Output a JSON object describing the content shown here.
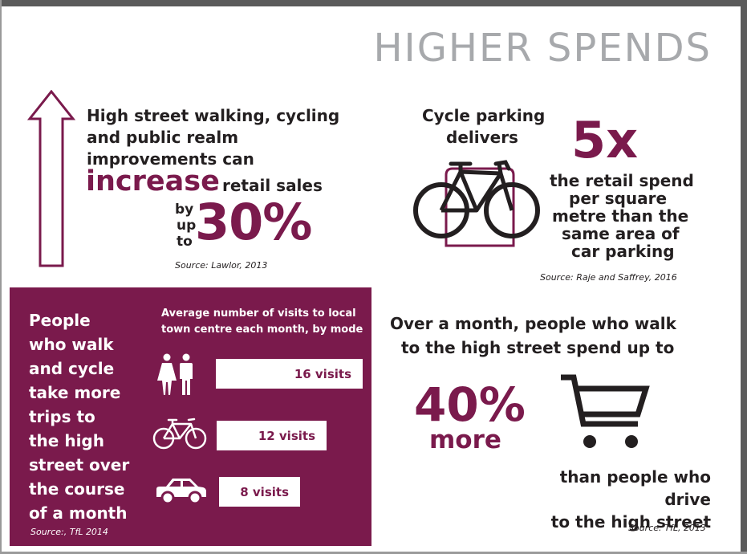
{
  "title": "HIGHER SPENDS",
  "section1": {
    "lines": [
      "High street walking, cycling",
      "and public realm",
      "improvements can"
    ],
    "highlight": "increase",
    "retail": "retail sales",
    "by_lines": [
      "by",
      "up",
      "to"
    ],
    "percent": "30%",
    "source": "Source: Lawlor, 2013",
    "arrow_icon": "up-arrow-icon"
  },
  "section2": {
    "intro_lines": [
      "Cycle parking",
      "delivers"
    ],
    "multiplier": "5x",
    "detail_lines": [
      "the retail spend",
      "per square",
      "metre than the",
      "same area of",
      "car parking"
    ],
    "source": "Source: Raje and Saffrey, 2016",
    "icon": "bicycle-with-stand-icon"
  },
  "section3": {
    "lines": [
      "People",
      "who walk",
      "and cycle",
      "take more",
      "trips to",
      "the high",
      "street over",
      "the course",
      "of a month"
    ],
    "caption_lines": [
      "Average number of visits to local",
      "town centre each month, by mode"
    ],
    "chart_data": {
      "type": "bar",
      "title": "Average number of visits to local town centre each month, by mode",
      "categories": [
        "walking",
        "cycling",
        "car"
      ],
      "values": [
        16,
        12,
        8
      ],
      "labels": [
        "16 visits",
        "12 visits",
        "8 visits"
      ],
      "icons": [
        "pedestrians-icon",
        "bicycle-icon",
        "car-icon"
      ]
    },
    "source": "Source:, TfL 2014",
    "panel_color": "#7a1a4c"
  },
  "section4": {
    "head_lines": [
      "Over a month, people who walk",
      "to the high street spend up to"
    ],
    "percent": "40%",
    "more": "more",
    "tail_lines": [
      "than people who drive",
      "to the high street"
    ],
    "source": "Source: TfL, 2013",
    "icon": "shopping-cart-icon"
  },
  "colors": {
    "accent": "#7a1a4c",
    "title": "#a7a9ac",
    "text": "#231f20"
  }
}
